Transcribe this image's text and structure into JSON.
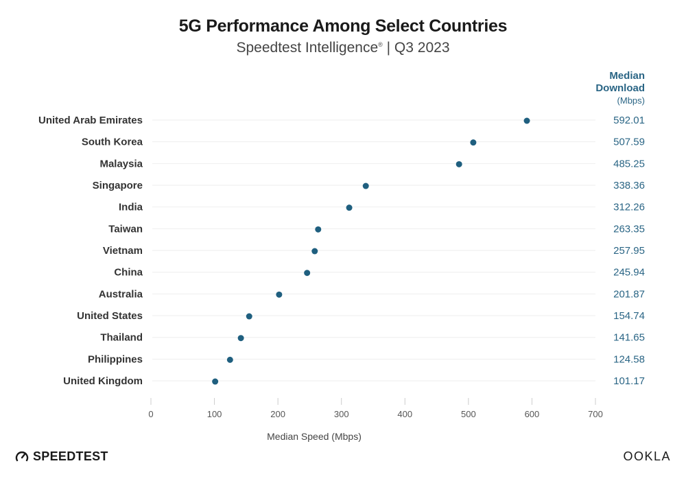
{
  "chart_data": {
    "type": "scatter",
    "title": "5G Performance Among Select Countries",
    "subtitle": "Speedtest Intelligence",
    "subtitle_mark": "®",
    "subtitle_period": "| Q3 2023",
    "xlabel": "Median Speed (Mbps)",
    "value_header": "Median Download",
    "value_header_unit": "(Mbps)",
    "xlim": [
      0,
      700
    ],
    "xticks": [
      0,
      100,
      200,
      300,
      400,
      500,
      600,
      700
    ],
    "grid": "horizontal-per-row",
    "categories": [
      "United Arab Emirates",
      "South Korea",
      "Malaysia",
      "Singapore",
      "India",
      "Taiwan",
      "Vietnam",
      "China",
      "Australia",
      "United States",
      "Thailand",
      "Philippines",
      "United Kingdom"
    ],
    "values": [
      592.01,
      507.59,
      485.25,
      338.36,
      312.26,
      263.35,
      257.95,
      245.94,
      201.87,
      154.74,
      141.65,
      124.58,
      101.17
    ],
    "value_labels": [
      "592.01",
      "507.59",
      "485.25",
      "338.36",
      "312.26",
      "263.35",
      "257.95",
      "245.94",
      "201.87",
      "154.74",
      "141.65",
      "124.58",
      "101.17"
    ],
    "colors": {
      "dot": "#1f5f7f",
      "value_text": "#2a6585",
      "grid": "#eeeeee",
      "axis": "#cccccc"
    }
  },
  "branding": {
    "left": "SPEEDTEST",
    "right": "OOKLA"
  }
}
